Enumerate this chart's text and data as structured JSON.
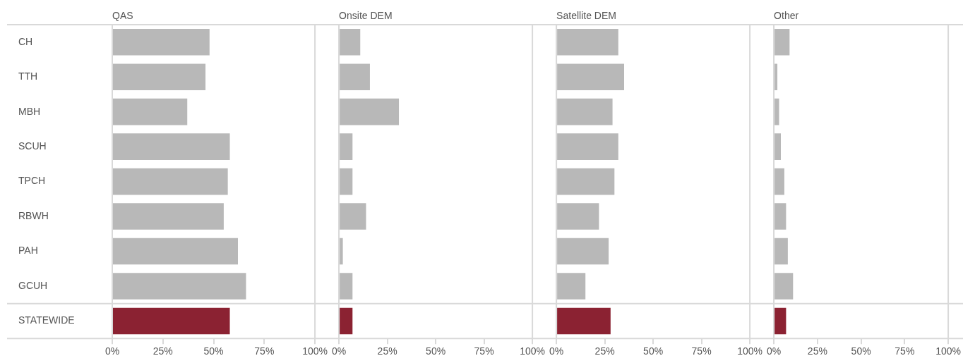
{
  "chart_data": [
    {
      "type": "bar",
      "orientation": "horizontal",
      "title": "QAS",
      "categories": [
        "CH",
        "TTH",
        "MBH",
        "SCUH",
        "TPCH",
        "RBWH",
        "PAH",
        "GCUH",
        "STATEWIDE"
      ],
      "values": [
        48,
        46,
        37,
        58,
        57,
        55,
        62,
        66,
        58
      ],
      "colors": [
        "#b8b8b8",
        "#b8b8b8",
        "#b8b8b8",
        "#b8b8b8",
        "#b8b8b8",
        "#b8b8b8",
        "#b8b8b8",
        "#b8b8b8",
        "#8b2232"
      ],
      "xlim": [
        0,
        100
      ],
      "xticks": [
        {
          "value": 0,
          "label": "0%"
        },
        {
          "value": 25,
          "label": "25%"
        },
        {
          "value": 50,
          "label": "50%"
        },
        {
          "value": 75,
          "label": "75%"
        },
        {
          "value": 100,
          "label": "100%"
        }
      ]
    },
    {
      "type": "bar",
      "orientation": "horizontal",
      "title": "Onsite DEM",
      "categories": [
        null,
        null,
        null,
        null,
        null,
        null,
        null,
        null,
        null
      ],
      "values": [
        11,
        16,
        31,
        7,
        7,
        14,
        2,
        7,
        7
      ],
      "colors": [
        "#b8b8b8",
        "#b8b8b8",
        "#b8b8b8",
        "#b8b8b8",
        "#b8b8b8",
        "#b8b8b8",
        "#b8b8b8",
        "#b8b8b8",
        "#8b2232"
      ],
      "xlim": [
        0,
        100
      ],
      "xticks": [
        {
          "value": 0,
          "label": "0%"
        },
        {
          "value": 25,
          "label": "25%"
        },
        {
          "value": 50,
          "label": "50%"
        },
        {
          "value": 75,
          "label": "75%"
        },
        {
          "value": 100,
          "label": "100%"
        }
      ]
    },
    {
      "type": "bar",
      "orientation": "horizontal",
      "title": "Satellite DEM",
      "categories": [
        null,
        null,
        null,
        null,
        null,
        null,
        null,
        null,
        null
      ],
      "values": [
        32,
        35,
        29,
        32,
        30,
        22,
        27,
        15,
        28
      ],
      "colors": [
        "#b8b8b8",
        "#b8b8b8",
        "#b8b8b8",
        "#b8b8b8",
        "#b8b8b8",
        "#b8b8b8",
        "#b8b8b8",
        "#b8b8b8",
        "#8b2232"
      ],
      "xlim": [
        0,
        100
      ],
      "xticks": [
        {
          "value": 0,
          "label": "0%"
        },
        {
          "value": 25,
          "label": "25%"
        },
        {
          "value": 50,
          "label": "50%"
        },
        {
          "value": 75,
          "label": "75%"
        },
        {
          "value": 100,
          "label": "100%"
        }
      ]
    },
    {
      "type": "bar",
      "orientation": "horizontal",
      "title": "Other",
      "categories": [
        null,
        null,
        null,
        null,
        null,
        null,
        null,
        null,
        null
      ],
      "values": [
        9,
        2,
        3,
        4,
        6,
        7,
        8,
        11,
        7
      ],
      "colors": [
        "#b8b8b8",
        "#b8b8b8",
        "#b8b8b8",
        "#b8b8b8",
        "#b8b8b8",
        "#b8b8b8",
        "#b8b8b8",
        "#b8b8b8",
        "#8b2232"
      ],
      "xlim": [
        0,
        100
      ],
      "xticks": [
        {
          "value": 0,
          "label": "0%"
        },
        {
          "value": 25,
          "label": "25%"
        },
        {
          "value": 50,
          "label": "50%"
        },
        {
          "value": 75,
          "label": "75%"
        },
        {
          "value": 100,
          "label": "100%"
        }
      ]
    }
  ]
}
